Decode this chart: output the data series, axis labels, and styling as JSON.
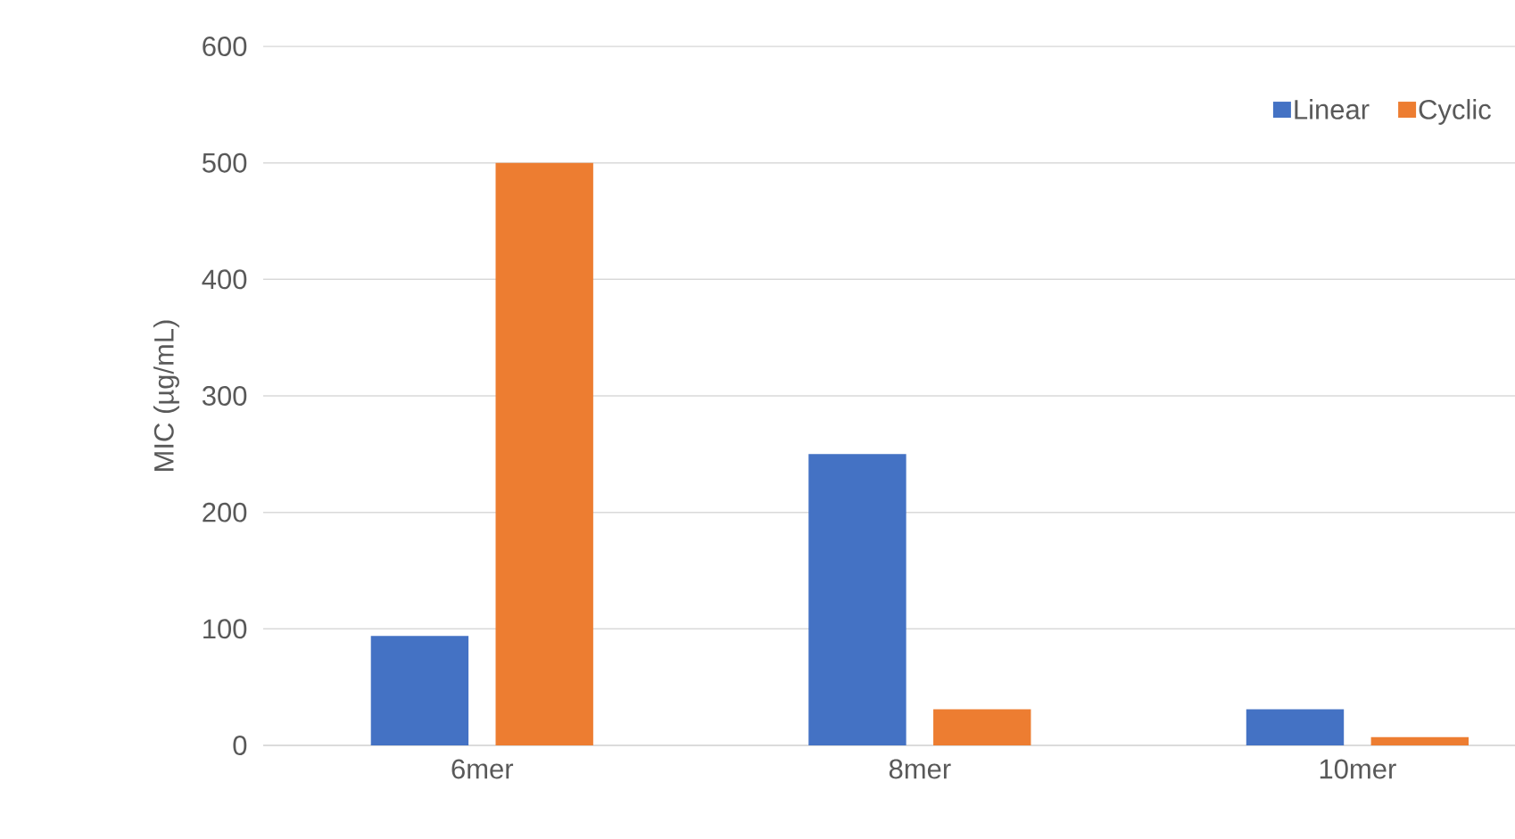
{
  "chart_data": {
    "type": "bar",
    "ylabel": "MIC (µg/mL)",
    "categories": [
      "6mer",
      "8mer",
      "10mer"
    ],
    "series": [
      {
        "name": "Linear",
        "color": "#4472c4",
        "values": [
          94,
          250,
          31
        ]
      },
      {
        "name": "Cyclic",
        "color": "#ed7d31",
        "values": [
          500,
          31,
          7
        ]
      }
    ],
    "ylim": [
      0,
      600
    ],
    "yticks": [
      0,
      100,
      200,
      300,
      400,
      500,
      600
    ],
    "grid": "y",
    "legend": "top right"
  }
}
